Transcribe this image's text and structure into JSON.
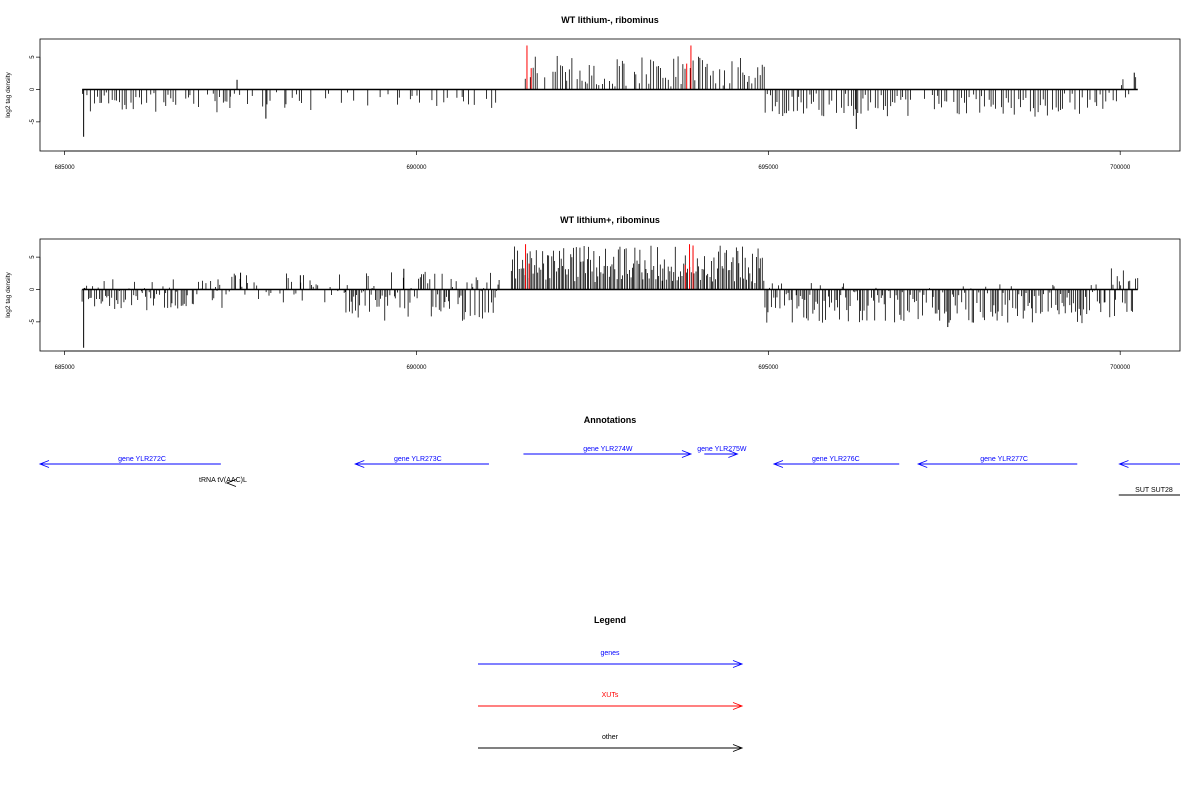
{
  "colors": {
    "gene": "#0000ff",
    "xut": "#ff0000",
    "other": "#000000",
    "axis": "#000000"
  },
  "chart_data": [
    {
      "type": "bar",
      "title": "WT lithium-, ribominus",
      "ylabel": "log2 tag density",
      "xlim": [
        684650,
        700850
      ],
      "ylim": [
        -9.5,
        7.8
      ],
      "x_ticks": [
        685000,
        690000,
        695000,
        700000
      ],
      "x_tick_labels": [
        "685000",
        "690000",
        "695000",
        "700000"
      ],
      "y_ticks": [
        5,
        0,
        -5
      ],
      "y_tick_labels": [
        "5",
        "0",
        "-5"
      ],
      "baseline": [
        685250,
        700250
      ],
      "profile": {
        "seed": 7,
        "spacing": 35,
        "segments": [
          {
            "range": [
              685250,
              687350
            ],
            "lo": -3.6,
            "hi": -0.4,
            "density": 0.75
          },
          {
            "range": [
              687350,
              691200
            ],
            "lo": -3.2,
            "hi": -0.4,
            "density": 0.3
          },
          {
            "range": [
              691550,
              694950
            ],
            "lo": 0.4,
            "hi": 5.2,
            "density": 0.85
          },
          {
            "range": [
              694950,
              699750
            ],
            "lo": -4.2,
            "hi": -0.6,
            "density": 0.85
          },
          {
            "range": [
              699800,
              700250
            ],
            "lo": -2.2,
            "hi": 2.8,
            "density": 0.6
          }
        ],
        "spikes": [
          {
            "x": 685270,
            "y": -7.3
          },
          {
            "x": 687450,
            "y": 1.5
          },
          {
            "x": 687860,
            "y": -4.5
          },
          {
            "x": 696250,
            "y": -6.1
          },
          {
            "x": 700200,
            "y": 2.6
          }
        ],
        "red_spikes": [
          {
            "x": 691570,
            "y": 6.8
          },
          {
            "x": 691630,
            "y": 3.3
          },
          {
            "x": 693900,
            "y": 6.8
          },
          {
            "x": 693840,
            "y": 4.0
          }
        ]
      }
    },
    {
      "type": "bar",
      "title": "WT lithium+, ribominus",
      "ylabel": "log2 tag density",
      "xlim": [
        684650,
        700850
      ],
      "ylim": [
        -9.5,
        7.8
      ],
      "x_ticks": [
        685000,
        690000,
        695000,
        700000
      ],
      "x_tick_labels": [
        "685000",
        "690000",
        "695000",
        "700000"
      ],
      "y_ticks": [
        5,
        0,
        -5
      ],
      "y_tick_labels": [
        "5",
        "0",
        "-5"
      ],
      "baseline": [
        685250,
        700250
      ],
      "profile": {
        "seed": 11,
        "spacing": 22,
        "segments": [
          {
            "range": [
              685250,
              687250
            ],
            "lo": -3.2,
            "hi": 1.6,
            "density": 0.95
          },
          {
            "range": [
              687250,
              689000
            ],
            "lo": -2.0,
            "hi": 2.5,
            "density": 0.55
          },
          {
            "range": [
              689000,
              691200
            ],
            "lo": -5.0,
            "hi": 2.8,
            "density": 0.95
          },
          {
            "range": [
              691350,
              694950
            ],
            "lo": 1.0,
            "hi": 6.8,
            "density": 1.0
          },
          {
            "range": [
              694950,
              699800
            ],
            "lo": -5.2,
            "hi": 1.0,
            "density": 0.95
          },
          {
            "range": [
              699850,
              700250
            ],
            "lo": -4.5,
            "hi": 3.5,
            "density": 0.9
          }
        ],
        "spikes": [
          {
            "x": 685270,
            "y": -9.0
          },
          {
            "x": 687500,
            "y": 2.6
          },
          {
            "x": 688350,
            "y": 2.2
          },
          {
            "x": 689820,
            "y": 3.2
          },
          {
            "x": 697550,
            "y": -5.8
          }
        ],
        "red_spikes": [
          {
            "x": 691550,
            "y": 7.0
          },
          {
            "x": 691600,
            "y": 4.0
          },
          {
            "x": 693880,
            "y": 7.0
          },
          {
            "x": 693930,
            "y": 6.8
          },
          {
            "x": 693820,
            "y": 3.8
          }
        ]
      }
    }
  ],
  "annotations": {
    "title": "Annotations",
    "items": [
      {
        "label": "gene YLR272C",
        "kind": "gene",
        "strand": "-",
        "start": 684650,
        "end": 687220,
        "label_at": 686100,
        "row": 0
      },
      {
        "label": "tRNA tV(AAC)L",
        "kind": "other",
        "strand": "-",
        "start": 687250,
        "end": 687350,
        "label_at": 687250,
        "row": 1
      },
      {
        "label": "gene YLR273C",
        "kind": "gene",
        "strand": "-",
        "start": 689130,
        "end": 691030,
        "label_at": 690020,
        "row": 0
      },
      {
        "label": "gene YLR274W",
        "kind": "gene",
        "strand": "+",
        "start": 691520,
        "end": 693900,
        "label_at": 692720,
        "row": -1
      },
      {
        "label": "gene YLR275W",
        "kind": "gene",
        "strand": "+",
        "start": 694090,
        "end": 694560,
        "label_at": 694340,
        "row": -1
      },
      {
        "label": "gene YLR276C",
        "kind": "gene",
        "strand": "-",
        "start": 695080,
        "end": 696860,
        "label_at": 695960,
        "row": 0
      },
      {
        "label": "gene YLR277C",
        "kind": "gene",
        "strand": "-",
        "start": 697130,
        "end": 699390,
        "label_at": 698350,
        "row": 0
      },
      {
        "label": "",
        "kind": "gene",
        "strand": "-",
        "start": 699990,
        "end": 700850,
        "label_at": 700400,
        "row": 0
      },
      {
        "label": "SUT SUT28",
        "kind": "other",
        "strand": "none",
        "start": 699980,
        "end": 700850,
        "label_at": 700480,
        "row": 2
      }
    ]
  },
  "legend": {
    "title": "Legend",
    "items": [
      {
        "label": "genes",
        "kind": "gene"
      },
      {
        "label": "XUTs",
        "kind": "xut"
      },
      {
        "label": "other",
        "kind": "other"
      }
    ]
  }
}
